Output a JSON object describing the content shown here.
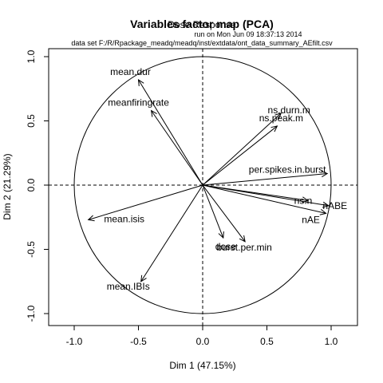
{
  "chart_data": {
    "type": "scatter",
    "title": "Variables factor map (PCA)",
    "overlay_title": "Dose Response",
    "subtitle_line1": "run on Mon Jun 09 18:37:13 2014",
    "subtitle_line2": "data set F:/R/Rpackage_meadq/meadq/inst/extdata/ont_data_summary_AEfilt.csv",
    "xlabel": "Dim 1 (47.15%)",
    "ylabel": "Dim 2 (21.29%)",
    "xlim": [
      -1.15,
      1.15
    ],
    "ylim": [
      -1.05,
      1.05
    ],
    "xticks": [
      "-1.0",
      "-0.5",
      "0.0",
      "0.5",
      "1.0"
    ],
    "yticks": [
      "-1.0",
      "-0.5",
      "0.0",
      "0.5",
      "1.0"
    ],
    "correlation_circle": true,
    "variables": [
      {
        "name": "mean.dur",
        "x": -0.5,
        "y": 0.82
      },
      {
        "name": "meanfiringrate",
        "x": -0.4,
        "y": 0.58
      },
      {
        "name": "ns.durn.m",
        "x": 0.61,
        "y": 0.56
      },
      {
        "name": "ns.peak.m",
        "x": 0.58,
        "y": 0.46
      },
      {
        "name": "per.spikes.in.burst",
        "x": 0.97,
        "y": 0.09
      },
      {
        "name": "ns.n",
        "x": 0.82,
        "y": -0.12
      },
      {
        "name": "nABE",
        "x": 0.98,
        "y": -0.16
      },
      {
        "name": "nAE",
        "x": 0.96,
        "y": -0.22
      },
      {
        "name": "mean.isis",
        "x": -0.89,
        "y": -0.27
      },
      {
        "name": "dose",
        "x": 0.16,
        "y": -0.41
      },
      {
        "name": "burst.per.min",
        "x": 0.33,
        "y": -0.44
      },
      {
        "name": "mean.IBIs",
        "x": -0.48,
        "y": -0.75
      }
    ]
  }
}
